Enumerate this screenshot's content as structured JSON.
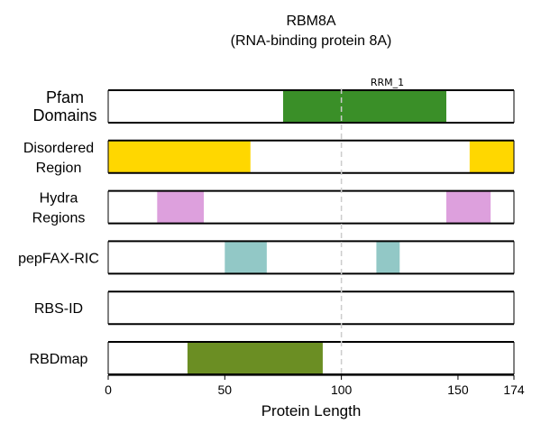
{
  "chart_data": {
    "type": "bar",
    "title": "RBM8A",
    "subtitle": "(RNA-binding protein 8A)",
    "xlabel": "Protein Length",
    "xlim": [
      0,
      174
    ],
    "xticks": [
      0,
      50,
      100,
      150,
      174
    ],
    "reference_line_x": 100,
    "tracks": [
      {
        "name": "Pfam Domains",
        "label_lines": [
          "Pfam",
          "Domains"
        ],
        "segments": [
          {
            "start": 75,
            "end": 145,
            "color": "#3a8f28",
            "label": "RRM_1"
          }
        ]
      },
      {
        "name": "Disordered Region",
        "label_lines": [
          "Disordered",
          "Region"
        ],
        "segments": [
          {
            "start": 0,
            "end": 61,
            "color": "#ffd700"
          },
          {
            "start": 155,
            "end": 174,
            "color": "#ffd700"
          }
        ]
      },
      {
        "name": "Hydra Regions",
        "label_lines": [
          "Hydra",
          "Regions"
        ],
        "segments": [
          {
            "start": 21,
            "end": 41,
            "color": "#dda0dd"
          },
          {
            "start": 145,
            "end": 164,
            "color": "#dda0dd"
          }
        ]
      },
      {
        "name": "pepFAX-RIC",
        "label_lines": [
          "pepFAX-RIC"
        ],
        "segments": [
          {
            "start": 50,
            "end": 68,
            "color": "#92c8c6"
          },
          {
            "start": 115,
            "end": 125,
            "color": "#92c8c6"
          }
        ]
      },
      {
        "name": "RBS-ID",
        "label_lines": [
          "RBS-ID"
        ],
        "segments": []
      },
      {
        "name": "RBDmap",
        "label_lines": [
          "RBDmap"
        ],
        "segments": [
          {
            "start": 34,
            "end": 92,
            "color": "#6b8e23"
          }
        ]
      }
    ]
  }
}
